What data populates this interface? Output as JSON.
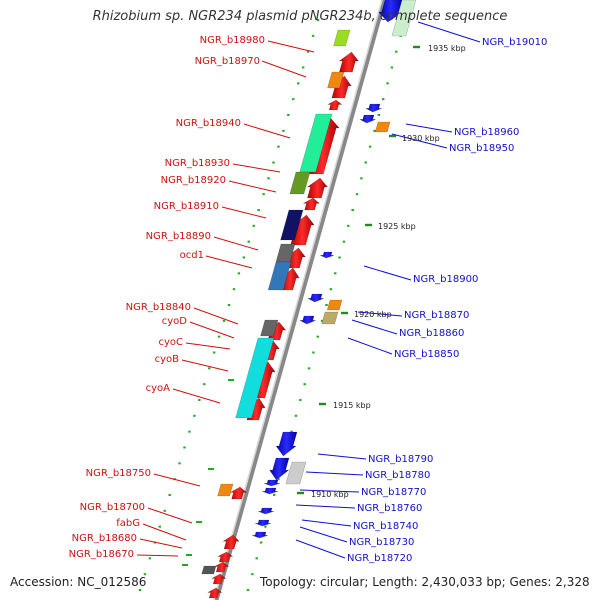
{
  "title": "Rhizobium sp. NGR234 plasmid pNGR234b, complete sequence",
  "footer": {
    "accession": "Accession: NC_012586",
    "topology": "Topology: circular; Length: 2,430,033 bp; Genes: 2,328"
  },
  "scale_labels": [
    "1935 kbp",
    "1930 kbp",
    "1925 kbp",
    "1920 kbp",
    "1915 kbp",
    "1910 kbp"
  ],
  "left_labels": [
    "NGR_b18980",
    "NGR_b18970",
    "NGR_b18940",
    "NGR_b18930",
    "NGR_b18920",
    "NGR_b18910",
    "NGR_b18890",
    "ocd1",
    "NGR_b18840",
    "cyoD",
    "cyoC",
    "cyoB",
    "cyoA",
    "NGR_b18750",
    "NGR_b18700",
    "fabG",
    "NGR_b18680",
    "NGR_b18670"
  ],
  "right_labels": [
    "NGR_b19010",
    "NGR_b18960",
    "NGR_b18950",
    "NGR_b18900",
    "NGR_b18870",
    "NGR_b18860",
    "NGR_b18850",
    "NGR_b18790",
    "NGR_b18780",
    "NGR_b18770",
    "NGR_b18760",
    "NGR_b18740",
    "NGR_b18730",
    "NGR_b18720"
  ],
  "colors": {
    "forward_strand": "#ee1111",
    "reverse_strand": "#1a1aee",
    "left_label": "#cc1111",
    "right_label": "#1010cc",
    "backbone": "#999999",
    "tick": "#22aa22"
  }
}
